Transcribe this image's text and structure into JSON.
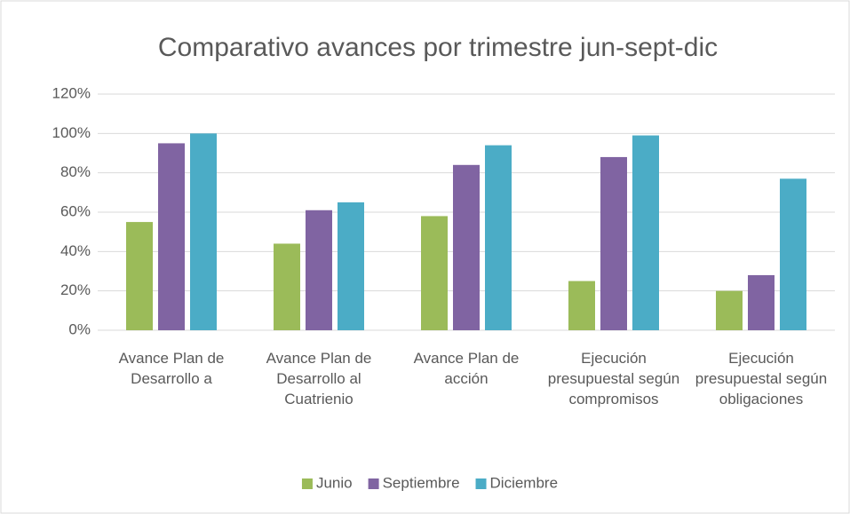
{
  "chart_data": {
    "type": "bar",
    "title": "Comparativo avances por trimestre jun-sept-dic",
    "categories": [
      "Avance Plan de Desarrollo a",
      "Avance Plan de Desarrollo al Cuatrienio",
      "Avance Plan de acción",
      "Ejecución presupuestal según compromisos",
      "Ejecución presupuestal según obligaciones"
    ],
    "series": [
      {
        "name": "Junio",
        "color": "#9bbb59",
        "values": [
          55,
          44,
          58,
          25,
          20
        ]
      },
      {
        "name": "Septiembre",
        "color": "#8064a2",
        "values": [
          95,
          61,
          84,
          88,
          28
        ]
      },
      {
        "name": "Diciembre",
        "color": "#4bacc6",
        "values": [
          100,
          65,
          94,
          99,
          77
        ]
      }
    ],
    "ylim": [
      0,
      120
    ],
    "yticks": [
      {
        "value": 0,
        "label": "0%"
      },
      {
        "value": 20,
        "label": "20%"
      },
      {
        "value": 40,
        "label": "40%"
      },
      {
        "value": 60,
        "label": "60%"
      },
      {
        "value": 80,
        "label": "80%"
      },
      {
        "value": 100,
        "label": "100%"
      },
      {
        "value": 120,
        "label": "120%"
      }
    ],
    "grid": true,
    "legend": "bottom"
  }
}
